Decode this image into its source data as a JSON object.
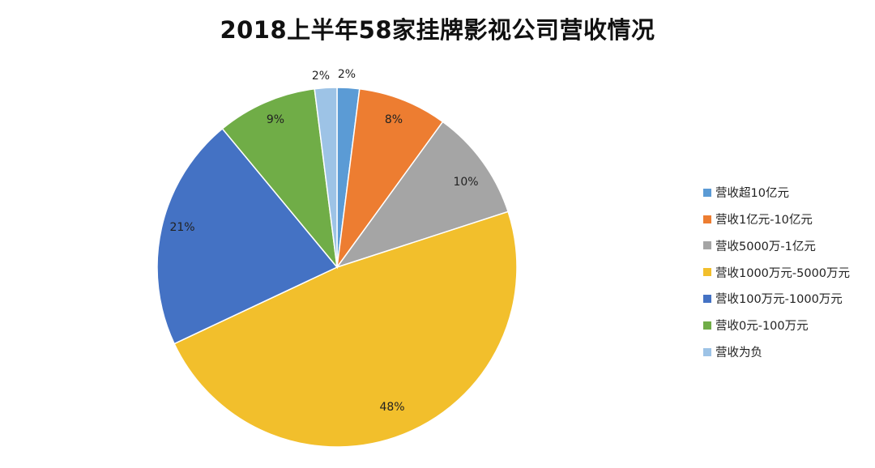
{
  "chart_data": {
    "type": "pie",
    "title": "2018上半年58家挂牌影视公司营收情况",
    "legend_position": "right",
    "slices": [
      {
        "label": "营收超10亿元",
        "value": 2,
        "display": "2%",
        "color": "#5b9bd5"
      },
      {
        "label": "营收1亿元-10亿元",
        "value": 8,
        "display": "8%",
        "color": "#ed7d31"
      },
      {
        "label": "营收5000万-1亿元",
        "value": 10,
        "display": "10%",
        "color": "#a5a5a5"
      },
      {
        "label": "营收1000万元-5000万元",
        "value": 48,
        "display": "48%",
        "color": "#f2bf2c"
      },
      {
        "label": "营收100万元-1000万元",
        "value": 21,
        "display": "21%",
        "color": "#4472c4"
      },
      {
        "label": "营收0元-100万元",
        "value": 9,
        "display": "9%",
        "color": "#70ad47"
      },
      {
        "label": "营收为负",
        "value": 2,
        "display": "2%",
        "color": "#9dc3e6"
      }
    ]
  }
}
